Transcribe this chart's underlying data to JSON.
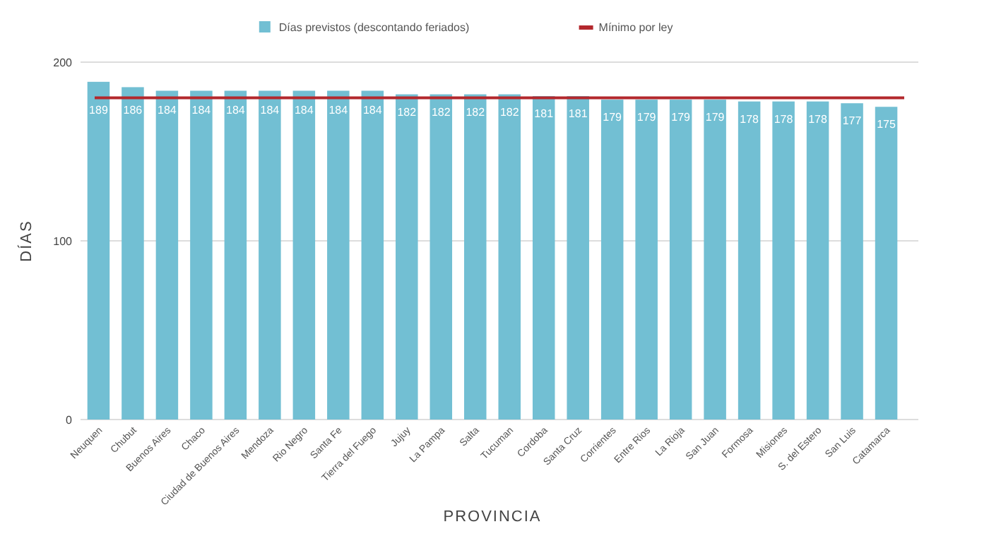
{
  "chart_data": {
    "type": "bar",
    "xlabel": "PROVINCIA",
    "ylabel": "DÍAS",
    "categories": [
      "Neuquen",
      "Chubut",
      "Buenos Aires",
      "Chaco",
      "Ciudad de Buenos Aires",
      "Mendoza",
      "Rio Negro",
      "Santa Fe",
      "Tierra del Fuego",
      "Jujuy",
      "La Pampa",
      "Salta",
      "Tucuman",
      "Cordoba",
      "Santa Cruz",
      "Corrientes",
      "Entre Rios",
      "La Rioja",
      "San Juan",
      "Formosa",
      "Misiones",
      "S. del Estero",
      "San Luis",
      "Catamarca"
    ],
    "series": [
      {
        "name": "Días previstos (descontando feriados)",
        "color": "#72bfd3",
        "values": [
          189,
          186,
          184,
          184,
          184,
          184,
          184,
          184,
          184,
          182,
          182,
          182,
          182,
          181,
          181,
          179,
          179,
          179,
          179,
          178,
          178,
          178,
          177,
          175
        ]
      }
    ],
    "ref_lines": [
      {
        "axis": "y",
        "value": 180,
        "label": "Mínimo por ley",
        "color": "#b3282d"
      }
    ],
    "ylim": [
      0,
      200
    ],
    "yticks": [
      0,
      100,
      200
    ],
    "grid": "y",
    "legend": "top",
    "data_labels": true
  }
}
